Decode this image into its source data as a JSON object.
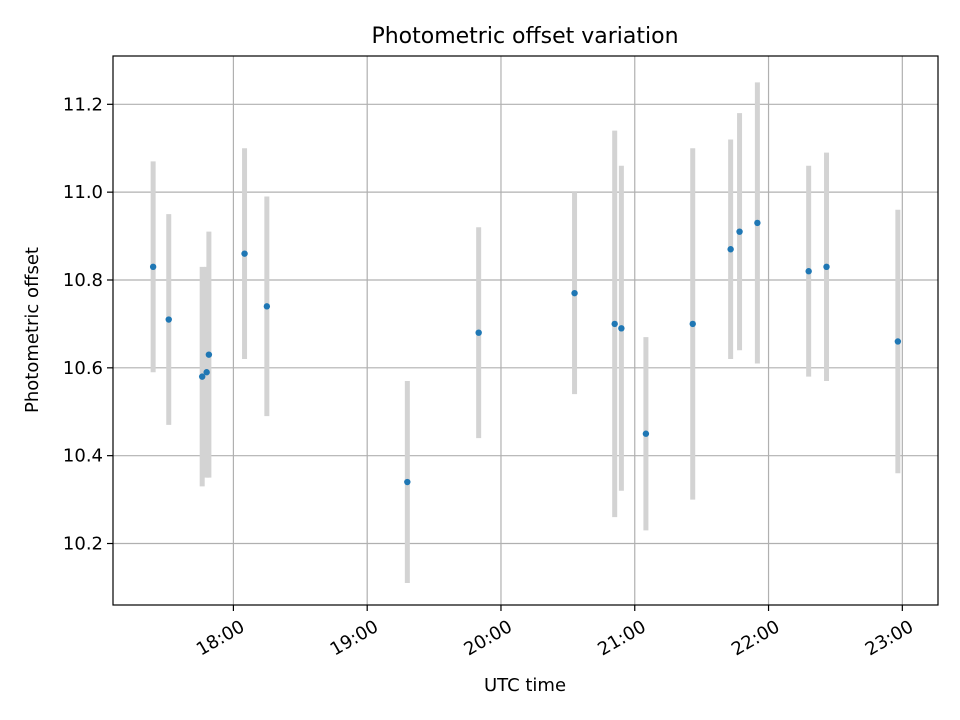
{
  "chart_data": {
    "type": "scatter",
    "title": "Photometric offset variation",
    "xlabel": "UTC time",
    "ylabel": "Photometric offset",
    "x_unit": "hours UTC",
    "xlim": [
      "17:06",
      "23:16"
    ],
    "ylim": [
      10.06,
      11.31
    ],
    "x_ticks": [
      "18:00",
      "19:00",
      "20:00",
      "21:00",
      "22:00",
      "23:00"
    ],
    "y_ticks": [
      10.2,
      10.4,
      10.6,
      10.8,
      11.0,
      11.2
    ],
    "y_tick_labels": [
      "10.2",
      "10.4",
      "10.6",
      "10.8",
      "11.0",
      "11.2"
    ],
    "grid": true,
    "colors": {
      "point": "#1f77b4",
      "errorbar": "#d3d3d3",
      "grid": "#b0b0b0",
      "axes": "#000000"
    },
    "points": [
      {
        "x": "17:24",
        "y": 10.83,
        "err": 0.24
      },
      {
        "x": "17:31",
        "y": 10.71,
        "err": 0.24
      },
      {
        "x": "17:46",
        "y": 10.58,
        "err": 0.25
      },
      {
        "x": "17:48",
        "y": 10.59,
        "err": 0.24
      },
      {
        "x": "17:49",
        "y": 10.63,
        "err": 0.28
      },
      {
        "x": "18:05",
        "y": 10.86,
        "err": 0.24
      },
      {
        "x": "18:15",
        "y": 10.74,
        "err": 0.25
      },
      {
        "x": "19:18",
        "y": 10.34,
        "err": 0.23
      },
      {
        "x": "19:50",
        "y": 10.68,
        "err": 0.24
      },
      {
        "x": "20:33",
        "y": 10.77,
        "err": 0.23
      },
      {
        "x": "20:51",
        "y": 10.7,
        "err": 0.44
      },
      {
        "x": "20:54",
        "y": 10.69,
        "err": 0.37
      },
      {
        "x": "21:05",
        "y": 10.45,
        "err": 0.22
      },
      {
        "x": "21:26",
        "y": 10.7,
        "err": 0.4
      },
      {
        "x": "21:43",
        "y": 10.87,
        "err": 0.25
      },
      {
        "x": "21:47",
        "y": 10.91,
        "err": 0.27
      },
      {
        "x": "21:55",
        "y": 10.93,
        "err": 0.32
      },
      {
        "x": "22:18",
        "y": 10.82,
        "err": 0.24
      },
      {
        "x": "22:26",
        "y": 10.83,
        "err": 0.26
      },
      {
        "x": "22:58",
        "y": 10.66,
        "err": 0.3
      }
    ]
  }
}
